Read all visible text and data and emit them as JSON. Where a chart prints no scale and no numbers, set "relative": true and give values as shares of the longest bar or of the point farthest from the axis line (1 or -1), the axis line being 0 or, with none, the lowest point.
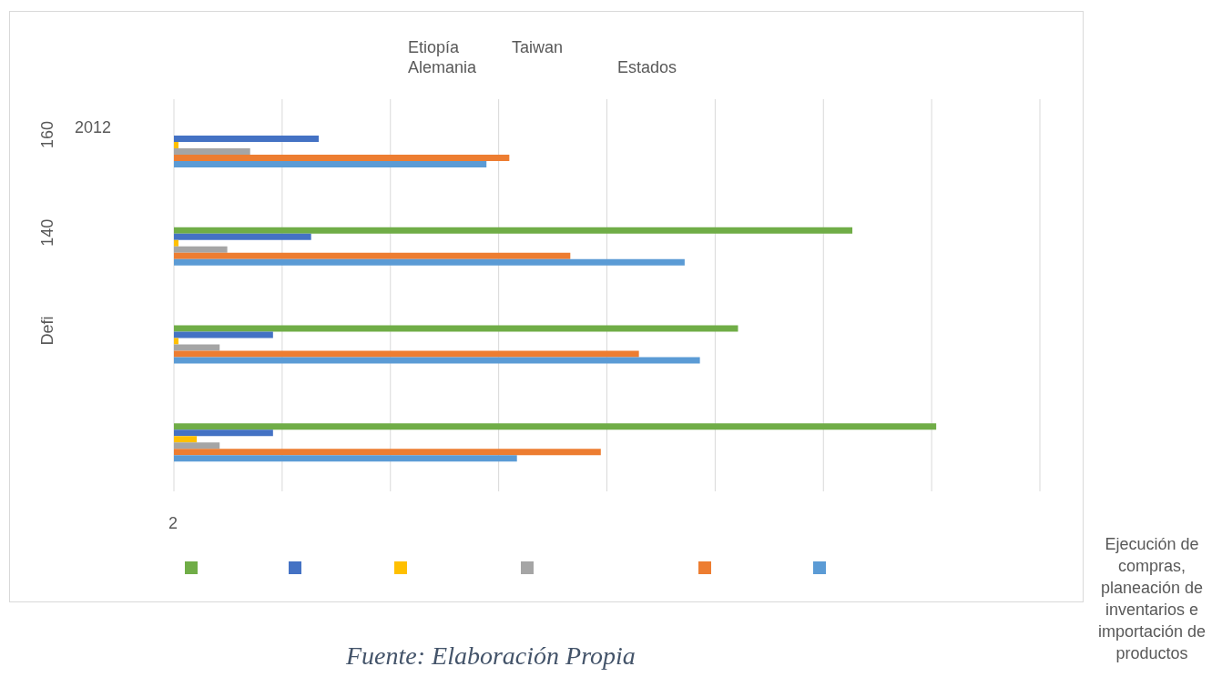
{
  "chart_data": {
    "type": "bar",
    "orientation": "horizontal",
    "relative": true,
    "categories": [
      "160",
      "140",
      "Defi",
      null
    ],
    "series": [
      {
        "color": "#70ad47",
        "values": [
          null,
          0.89,
          0.74,
          1
        ]
      },
      {
        "color": "#4472c4",
        "values": [
          0.19,
          0.18,
          0.13,
          0.13
        ]
      },
      {
        "color": "#ffc000",
        "values": [
          0.006,
          0.006,
          0.006,
          0.03
        ]
      },
      {
        "color": "#a5a5a5",
        "values": [
          0.1,
          0.07,
          0.06,
          0.06
        ]
      },
      {
        "color": "#ed7d31",
        "values": [
          0.44,
          0.52,
          0.61,
          0.56
        ]
      },
      {
        "color": "#5b9bd5",
        "values": [
          0.41,
          0.67,
          0.69,
          0.45
        ]
      }
    ],
    "grid": "x",
    "annotations": [
      "Etiopía",
      "Taiwan",
      "Alemania",
      "Estados",
      "2012",
      "2",
      "Ejecución de compras, planeación de inventarios e importación de productos",
      "Fuente: Elaboración Propia"
    ]
  }
}
